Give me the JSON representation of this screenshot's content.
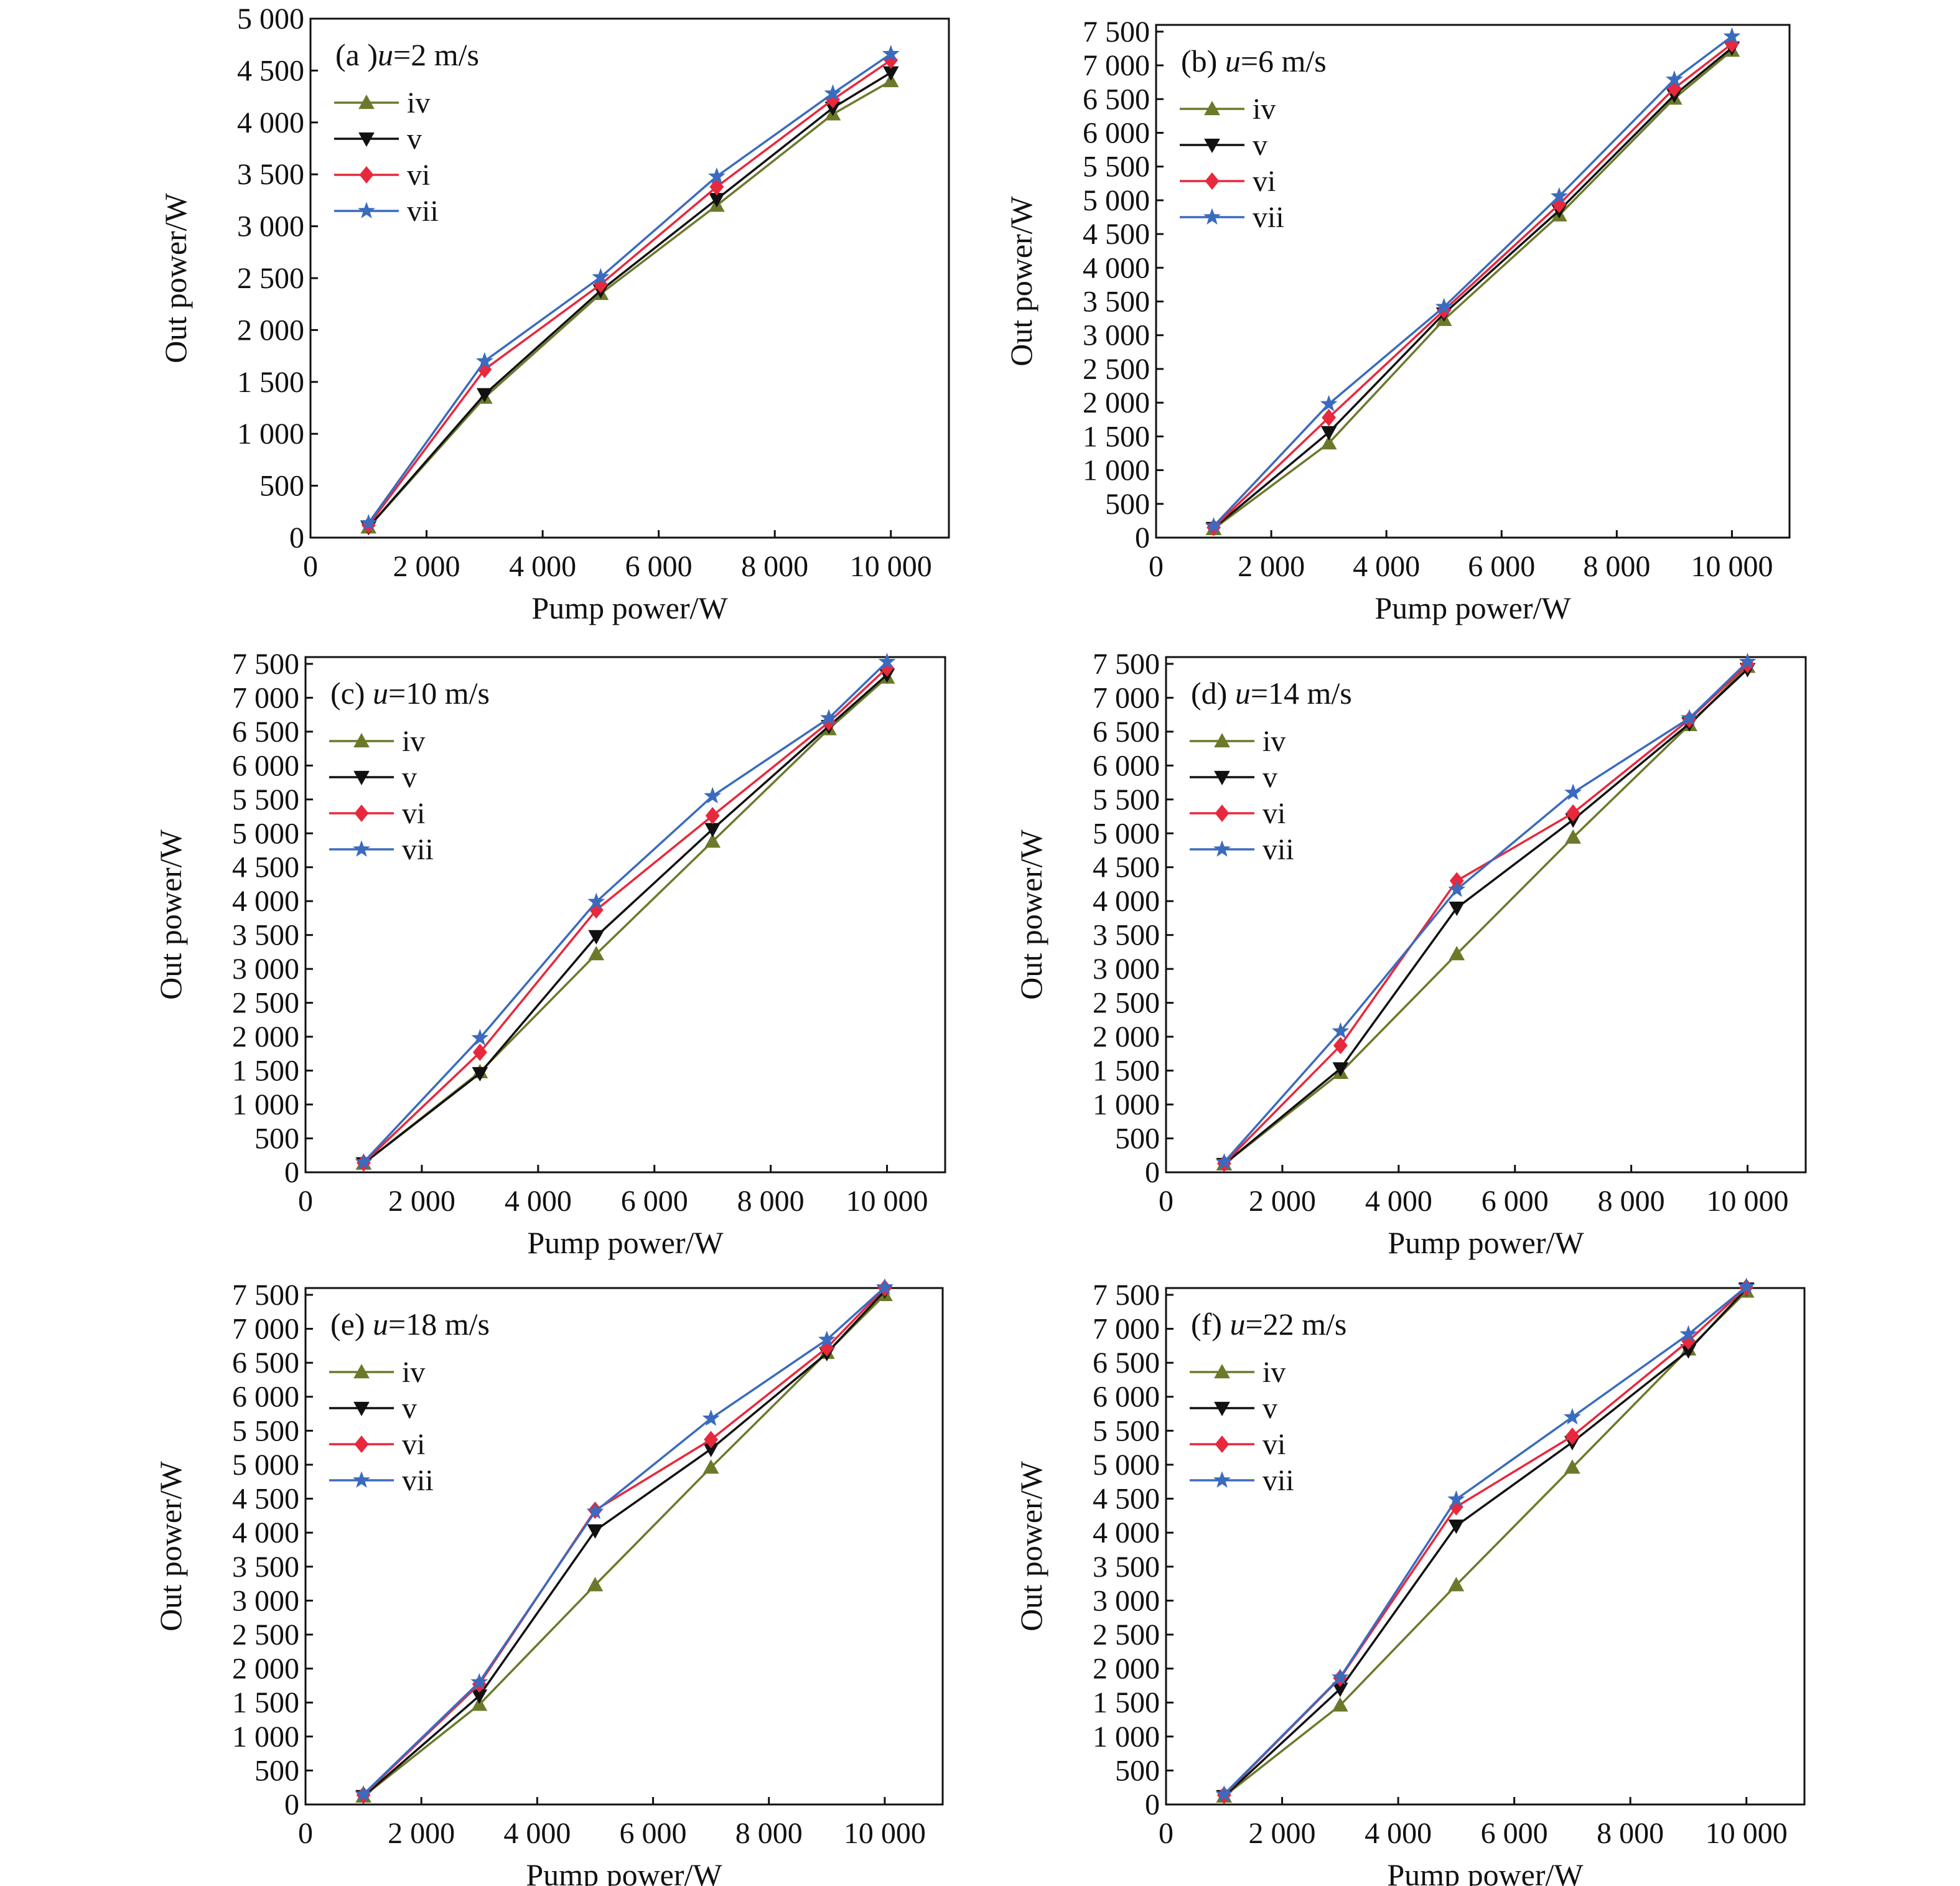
{
  "chart_data": [
    {
      "type": "line",
      "title": "(a )u=2 m/s",
      "title_prefix": "(a )",
      "title_var": "u",
      "title_suffix": "=2 m/s",
      "xlabel": "Pump power/W",
      "ylabel": "Out power/W",
      "xlim": [
        0,
        11000
      ],
      "ylim": [
        0,
        5000
      ],
      "xticks": [
        0,
        2000,
        4000,
        6000,
        8000,
        10000
      ],
      "xtick_labels": [
        "0",
        "2 000",
        "4 000",
        "6 000",
        "8 000",
        "10 000"
      ],
      "yticks": [
        0,
        500,
        1000,
        1500,
        2000,
        2500,
        3000,
        3500,
        4000,
        4500,
        5000
      ],
      "ytick_labels": [
        "0",
        "500",
        "1 000",
        "1 500",
        "2 000",
        "2 500",
        "3 000",
        "3 500",
        "4 000",
        "4 500",
        "5 000"
      ],
      "x": [
        1000,
        3000,
        5000,
        7000,
        9000,
        10000
      ],
      "series": [
        {
          "name": "iv",
          "values": [
            100,
            1350,
            2350,
            3200,
            4080,
            4400
          ]
        },
        {
          "name": "v",
          "values": [
            100,
            1380,
            2380,
            3260,
            4140,
            4480
          ]
        },
        {
          "name": "vi",
          "values": [
            120,
            1620,
            2440,
            3380,
            4220,
            4600
          ]
        },
        {
          "name": "vii",
          "values": [
            140,
            1700,
            2510,
            3480,
            4280,
            4660
          ]
        }
      ]
    },
    {
      "type": "line",
      "title": "(b) u=6 m/s",
      "title_prefix": "(b) ",
      "title_var": "u",
      "title_suffix": "=6 m/s",
      "xlabel": "Pump power/W",
      "ylabel": "Out power/W",
      "xlim": [
        0,
        11000
      ],
      "ylim": [
        0,
        7600
      ],
      "xticks": [
        0,
        2000,
        4000,
        6000,
        8000,
        10000
      ],
      "xtick_labels": [
        "0",
        "2 000",
        "4 000",
        "6 000",
        "8 000",
        "10 000"
      ],
      "yticks": [
        0,
        500,
        1000,
        1500,
        2000,
        2500,
        3000,
        3500,
        4000,
        4500,
        5000,
        5500,
        6000,
        6500,
        7000,
        7500
      ],
      "ytick_labels": [
        "0",
        "500",
        "1 000",
        "1 500",
        "2 000",
        "2 500",
        "3 000",
        "3 500",
        "4 000",
        "4 500",
        "5 000",
        "5 500",
        "6 000",
        "6 500",
        "7 000",
        "7 500"
      ],
      "x": [
        1000,
        3000,
        5000,
        7000,
        9000,
        10000
      ],
      "series": [
        {
          "name": "iv",
          "values": [
            130,
            1400,
            3230,
            4780,
            6510,
            7220
          ]
        },
        {
          "name": "v",
          "values": [
            140,
            1560,
            3320,
            4850,
            6560,
            7260
          ]
        },
        {
          "name": "vi",
          "values": [
            150,
            1780,
            3370,
            4940,
            6660,
            7320
          ]
        },
        {
          "name": "vii",
          "values": [
            170,
            1980,
            3420,
            5060,
            6790,
            7430
          ]
        }
      ]
    },
    {
      "type": "line",
      "title": "(c) u=10 m/s",
      "title_prefix": "(c) ",
      "title_var": "u",
      "title_suffix": "=10 m/s",
      "xlabel": "Pump power/W",
      "ylabel": "Out power/W",
      "xlim": [
        0,
        11000
      ],
      "ylim": [
        0,
        7600
      ],
      "xticks": [
        0,
        2000,
        4000,
        6000,
        8000,
        10000
      ],
      "xtick_labels": [
        "0",
        "2 000",
        "4 000",
        "6 000",
        "8 000",
        "10 000"
      ],
      "yticks": [
        0,
        500,
        1000,
        1500,
        2000,
        2500,
        3000,
        3500,
        4000,
        4500,
        5000,
        5500,
        6000,
        6500,
        7000,
        7500
      ],
      "ytick_labels": [
        "0",
        "500",
        "1 000",
        "1 500",
        "2 000",
        "2 500",
        "3 000",
        "3 500",
        "4 000",
        "4 500",
        "5 000",
        "5 500",
        "6 000",
        "6 500",
        "7 000",
        "7 500"
      ],
      "x": [
        1000,
        3000,
        5000,
        7000,
        9000,
        10000
      ],
      "series": [
        {
          "name": "iv",
          "values": [
            130,
            1480,
            3220,
            4880,
            6540,
            7300
          ]
        },
        {
          "name": "v",
          "values": [
            130,
            1460,
            3480,
            5060,
            6580,
            7340
          ]
        },
        {
          "name": "vi",
          "values": [
            140,
            1770,
            3870,
            5260,
            6640,
            7440
          ]
        },
        {
          "name": "vii",
          "values": [
            150,
            1980,
            3990,
            5550,
            6700,
            7530
          ]
        }
      ]
    },
    {
      "type": "line",
      "title": "(d) u=14 m/s",
      "title_prefix": "(d) ",
      "title_var": "u",
      "title_suffix": "=14 m/s",
      "xlabel": "Pump power/W",
      "ylabel": "Out power/W",
      "xlim": [
        0,
        11000
      ],
      "ylim": [
        0,
        7600
      ],
      "xticks": [
        0,
        2000,
        4000,
        6000,
        8000,
        10000
      ],
      "xtick_labels": [
        "0",
        "2 000",
        "4 000",
        "6 000",
        "8 000",
        "10 000"
      ],
      "yticks": [
        0,
        500,
        1000,
        1500,
        2000,
        2500,
        3000,
        3500,
        4000,
        4500,
        5000,
        5500,
        6000,
        6500,
        7000,
        7500
      ],
      "ytick_labels": [
        "0",
        "500",
        "1 000",
        "1 500",
        "2 000",
        "2 500",
        "3 000",
        "3 500",
        "4 000",
        "4 500",
        "5 000",
        "5 500",
        "6 000",
        "6 500",
        "7 000",
        "7 500"
      ],
      "x": [
        1000,
        3000,
        5000,
        7000,
        9000,
        10000
      ],
      "series": [
        {
          "name": "iv",
          "values": [
            120,
            1470,
            3220,
            4940,
            6600,
            7460
          ]
        },
        {
          "name": "v",
          "values": [
            120,
            1530,
            3900,
            5200,
            6620,
            7420
          ]
        },
        {
          "name": "vi",
          "values": [
            130,
            1870,
            4300,
            5300,
            6680,
            7490
          ]
        },
        {
          "name": "vii",
          "values": [
            150,
            2080,
            4170,
            5600,
            6700,
            7530
          ]
        }
      ]
    },
    {
      "type": "line",
      "title": "(e) u=18 m/s",
      "title_prefix": "(e) ",
      "title_var": "u",
      "title_suffix": "=18 m/s",
      "xlabel": "Pump power/W",
      "ylabel": "Out power/W",
      "xlim": [
        0,
        11000
      ],
      "ylim": [
        0,
        7600
      ],
      "xticks": [
        0,
        2000,
        4000,
        6000,
        8000,
        10000
      ],
      "xtick_labels": [
        "0",
        "2 000",
        "4 000",
        "6 000",
        "8 000",
        "10 000"
      ],
      "yticks": [
        0,
        500,
        1000,
        1500,
        2000,
        2500,
        3000,
        3500,
        4000,
        4500,
        5000,
        5500,
        6000,
        6500,
        7000,
        7500
      ],
      "ytick_labels": [
        "0",
        "500",
        "1 000",
        "1 500",
        "2 000",
        "2 500",
        "3 000",
        "3 500",
        "4 000",
        "4 500",
        "5 000",
        "5 500",
        "6 000",
        "6 500",
        "7 000",
        "7 500"
      ],
      "x": [
        1000,
        3000,
        5000,
        7000,
        9000,
        10000
      ],
      "series": [
        {
          "name": "iv",
          "values": [
            120,
            1470,
            3230,
            4960,
            6650,
            7500
          ]
        },
        {
          "name": "v",
          "values": [
            120,
            1600,
            4030,
            5230,
            6640,
            7560
          ]
        },
        {
          "name": "vi",
          "values": [
            140,
            1770,
            4330,
            5370,
            6720,
            7600
          ]
        },
        {
          "name": "vii",
          "values": [
            150,
            1800,
            4310,
            5680,
            6840,
            7610
          ]
        }
      ]
    },
    {
      "type": "line",
      "title": "(f) u=22 m/s",
      "title_prefix": "(f) ",
      "title_var": "u",
      "title_suffix": "=22 m/s",
      "xlabel": "Pump power/W",
      "ylabel": "Out power/W",
      "xlim": [
        0,
        11000
      ],
      "ylim": [
        0,
        7600
      ],
      "xticks": [
        0,
        2000,
        4000,
        6000,
        8000,
        10000
      ],
      "xtick_labels": [
        "0",
        "2 000",
        "4 000",
        "6 000",
        "8 000",
        "10 000"
      ],
      "yticks": [
        0,
        500,
        1000,
        1500,
        2000,
        2500,
        3000,
        3500,
        4000,
        4500,
        5000,
        5500,
        6000,
        6500,
        7000,
        7500
      ],
      "ytick_labels": [
        "0",
        "500",
        "1 000",
        "1 500",
        "2 000",
        "2 500",
        "3 000",
        "3 500",
        "4 000",
        "4 500",
        "5 000",
        "5 500",
        "6 000",
        "6 500",
        "7 000",
        "7 500"
      ],
      "x": [
        1000,
        3000,
        5000,
        7000,
        9000,
        10000
      ],
      "series": [
        {
          "name": "iv",
          "values": [
            120,
            1460,
            3230,
            4960,
            6700,
            7550
          ]
        },
        {
          "name": "v",
          "values": [
            120,
            1700,
            4100,
            5330,
            6680,
            7590
          ]
        },
        {
          "name": "vi",
          "values": [
            140,
            1860,
            4380,
            5420,
            6820,
            7610
          ]
        },
        {
          "name": "vii",
          "values": [
            150,
            1870,
            4490,
            5700,
            6920,
            7620
          ]
        }
      ]
    }
  ],
  "series_styles": {
    "iv": {
      "color": "#6b7a2a",
      "marker": "triangle-up"
    },
    "v": {
      "color": "#111111",
      "marker": "triangle-down"
    },
    "vi": {
      "color": "#e8283c",
      "marker": "diamond"
    },
    "vii": {
      "color": "#3a6bbf",
      "marker": "star"
    }
  }
}
